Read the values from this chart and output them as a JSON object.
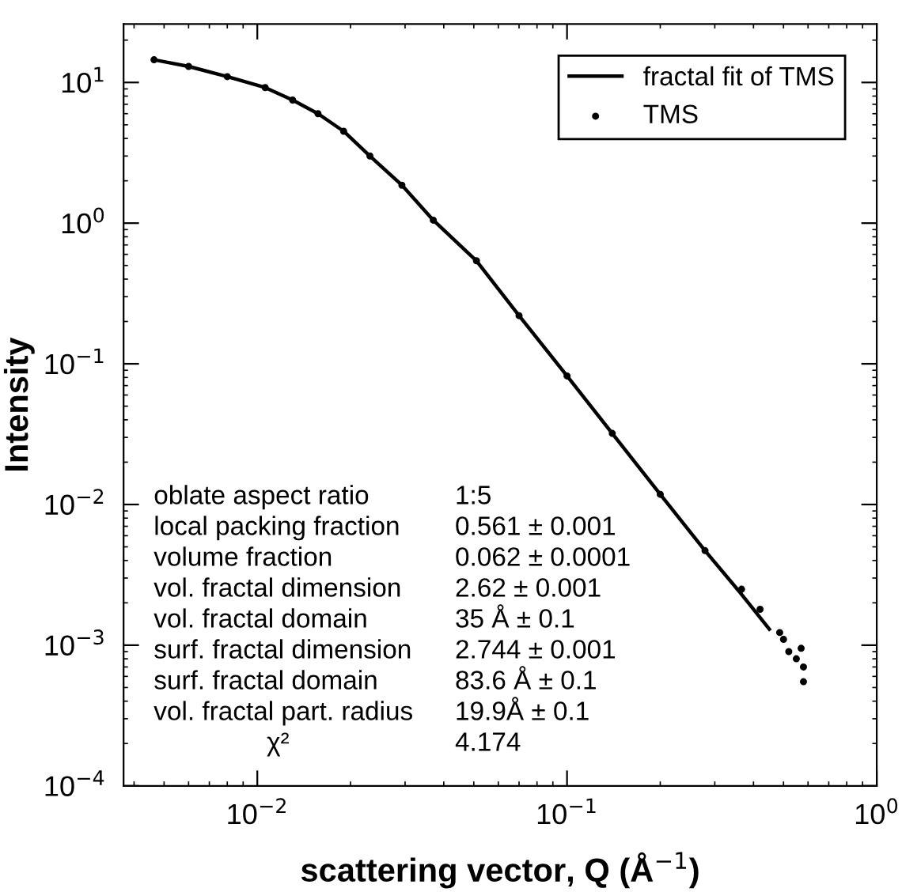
{
  "chart_data": {
    "type": "line",
    "xlabel": "scattering vector, Q (Å$^{−1}$)",
    "ylabel": "Intensity",
    "log": "xy",
    "xlim": [
      0.0037,
      1
    ],
    "ylim": [
      0.0001,
      26
    ],
    "xticks": [
      {
        "value": 0.01,
        "label": "10$^{−2}$"
      },
      {
        "value": 0.1,
        "label": "10$^{−1}$"
      },
      {
        "value": 1,
        "label": "10$^{0}$"
      }
    ],
    "yticks": [
      {
        "value": 0.0001,
        "label": "10$^{−4}$"
      },
      {
        "value": 0.001,
        "label": "10$^{−3}$"
      },
      {
        "value": 0.01,
        "label": "10$^{−2}$"
      },
      {
        "value": 0.1,
        "label": "10$^{−1}$"
      },
      {
        "value": 1,
        "label": "10$^{0}$"
      },
      {
        "value": 10,
        "label": "10$^{1}$"
      }
    ],
    "legend": "top right",
    "grid": false,
    "series": [
      {
        "name": "fractal fit of TMS",
        "color": "#000000",
        "line_style": "solid",
        "marker": "none",
        "x": [
          0.00464,
          0.006,
          0.008,
          0.0106,
          0.013,
          0.0157,
          0.019,
          0.0231,
          0.0293,
          0.037,
          0.051,
          0.07,
          0.1,
          0.14,
          0.2,
          0.279,
          0.366,
          0.45
        ],
        "values": [
          14.5,
          13,
          11,
          9.2,
          7.5,
          6.0,
          4.5,
          3.0,
          1.86,
          1.05,
          0.54,
          0.22,
          0.082,
          0.032,
          0.0118,
          0.0047,
          0.0023,
          0.0013
        ]
      },
      {
        "name": "TMS",
        "type": "scatter",
        "color": "#000000",
        "marker": "circle",
        "x": [
          0.00464,
          0.006,
          0.008,
          0.0106,
          0.013,
          0.0157,
          0.019,
          0.0231,
          0.0293,
          0.037,
          0.051,
          0.07,
          0.1,
          0.14,
          0.2,
          0.279,
          0.366,
          0.42,
          0.486,
          0.5,
          0.52,
          0.55,
          0.57,
          0.58,
          0.58
        ],
        "values": [
          14.5,
          13,
          11,
          9.2,
          7.5,
          6.0,
          4.5,
          3.0,
          1.86,
          1.05,
          0.54,
          0.22,
          0.082,
          0.032,
          0.0118,
          0.0047,
          0.0025,
          0.0018,
          0.00123,
          0.0011,
          0.0009,
          0.0008,
          0.00095,
          0.0007,
          0.00055
        ]
      }
    ],
    "annotations": [
      "oblate aspect ratio",
      "1:5",
      "local packing fraction",
      "0.561 ± 0.001",
      "volume fraction",
      "0.062 ± 0.0001",
      "vol. fractal dimension",
      "2.62 ± 0.001",
      "vol. fractal domain",
      "35 Å ± 0.1",
      "surf. fractal dimension",
      "2.744 ± 0.001",
      "surf. fractal domain",
      "83.6 Å ± 0.1",
      "vol. fractal part. radius",
      "19.9Å ± 0.1",
      "χ²",
      "4.174"
    ]
  }
}
